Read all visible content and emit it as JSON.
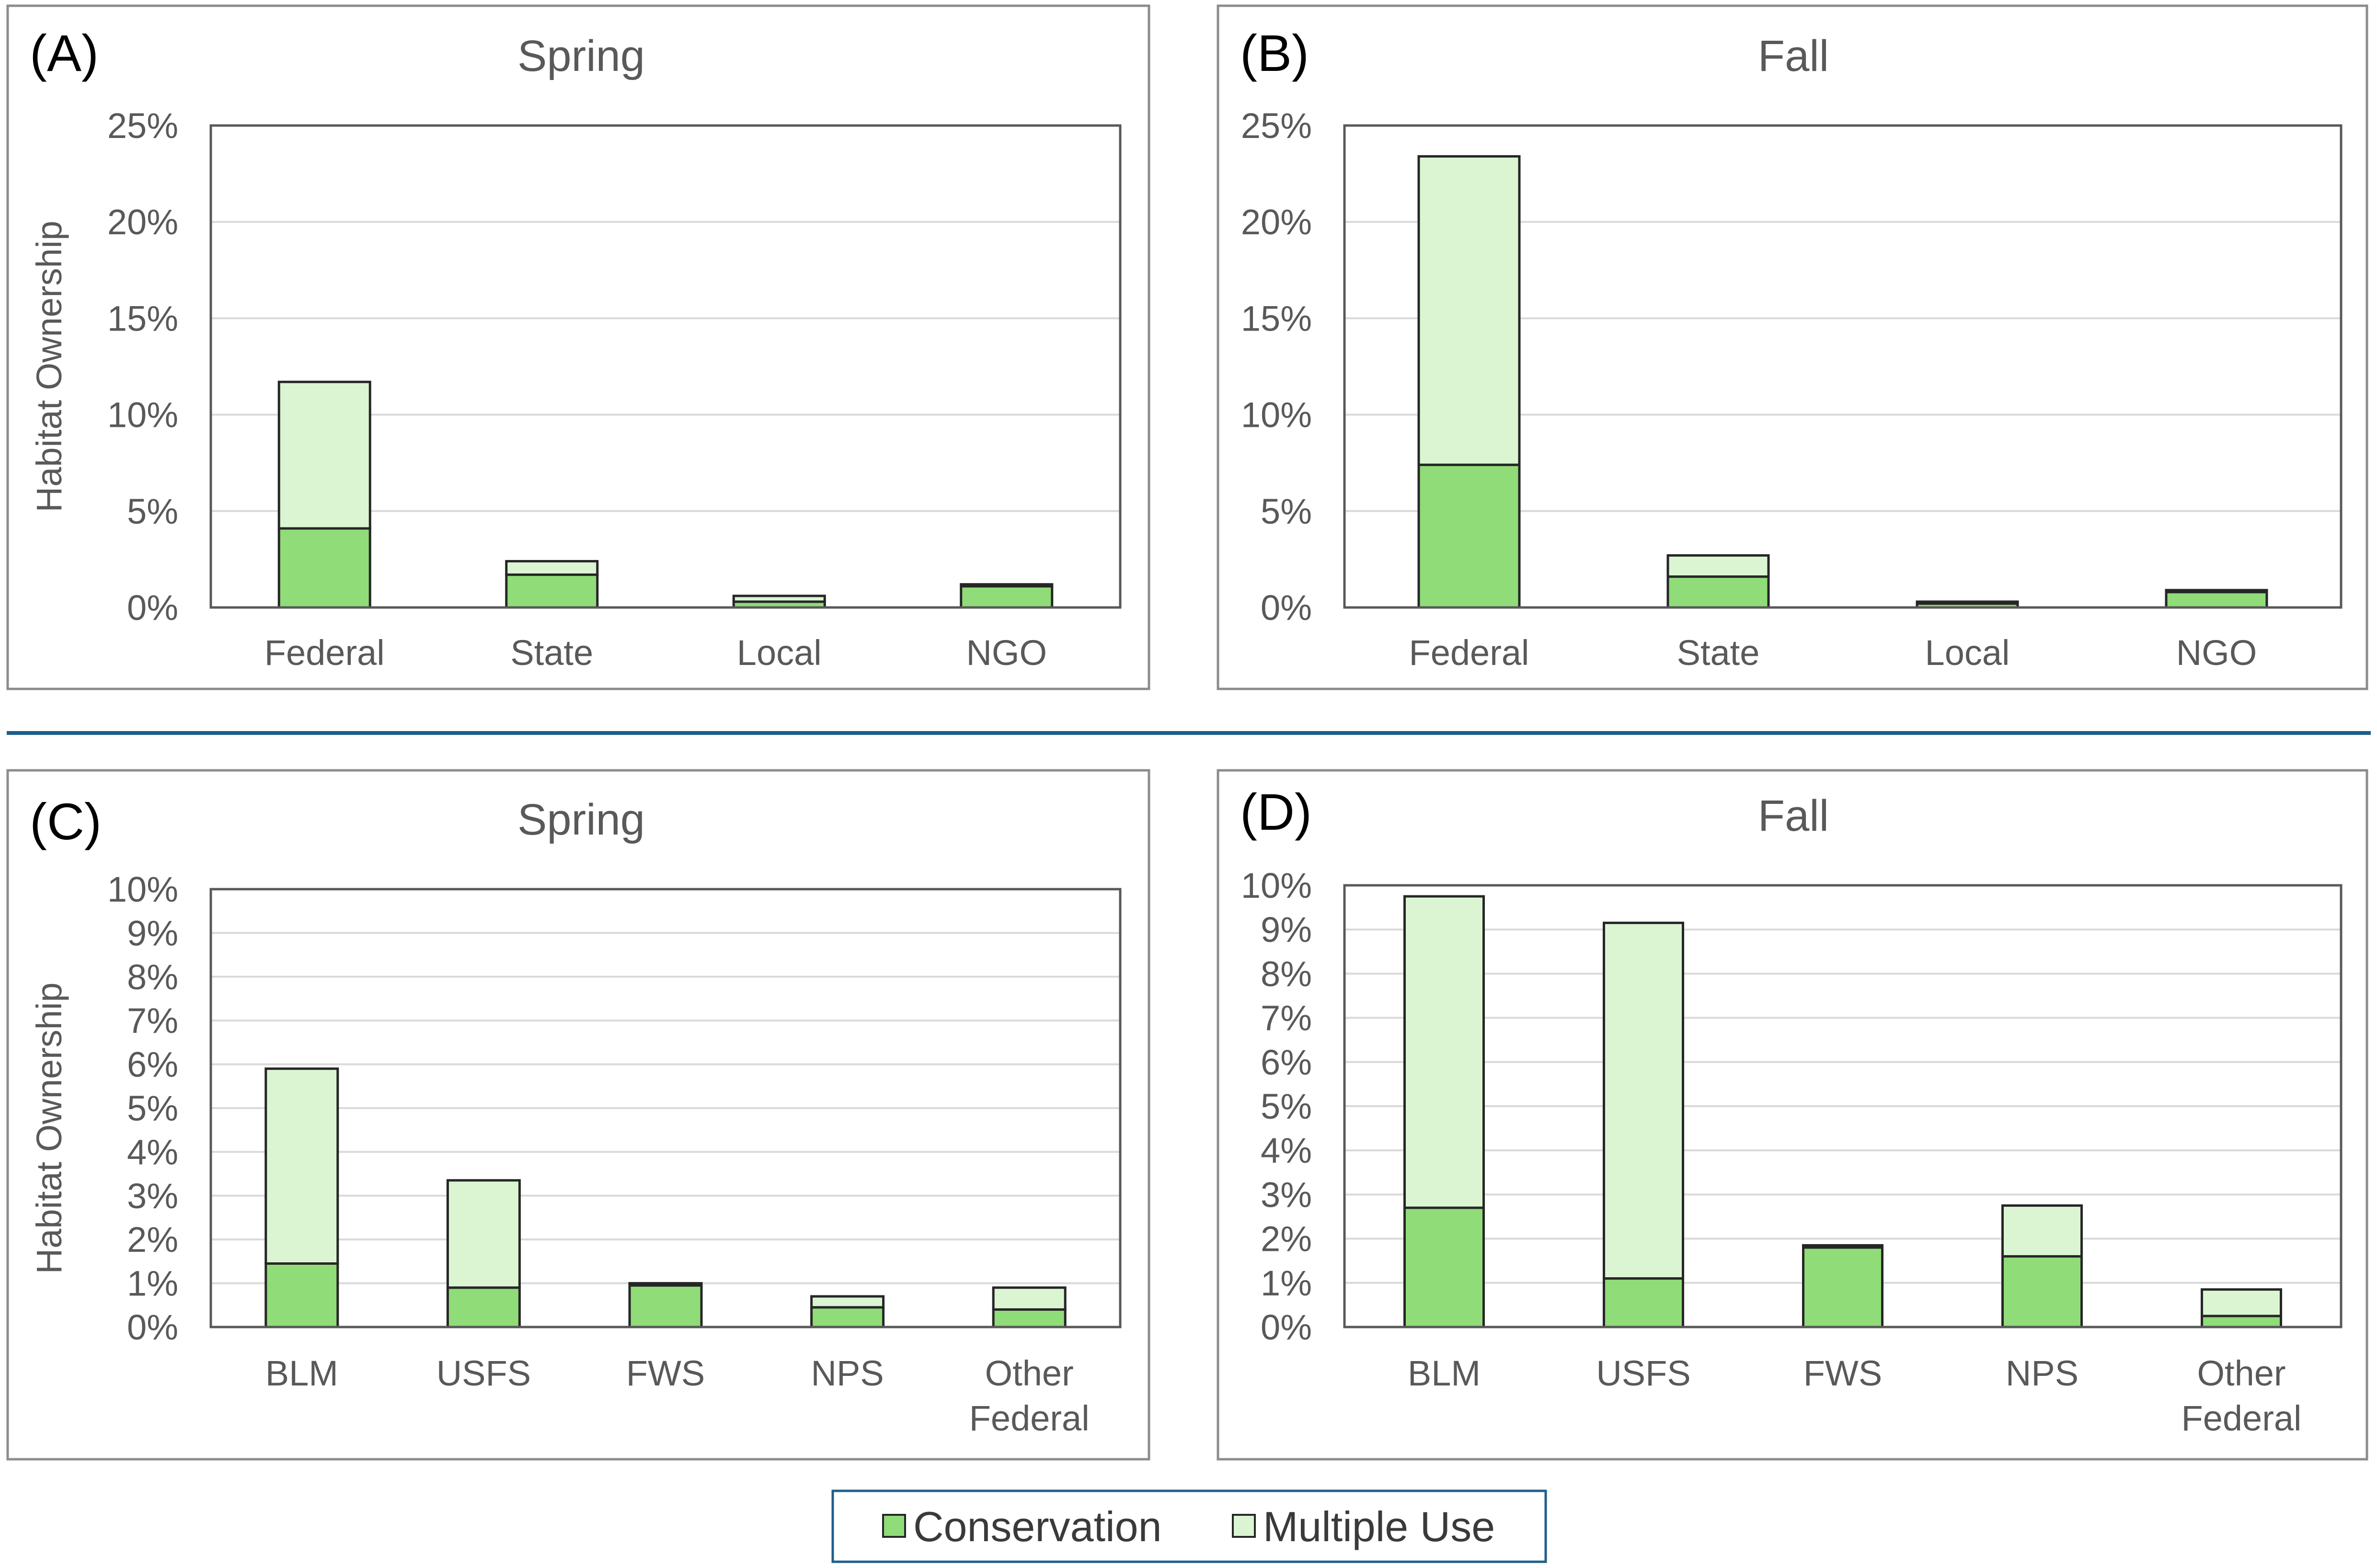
{
  "colors": {
    "conservation": "#8fdc78",
    "multiple_use": "#dbf5d3"
  },
  "legend": {
    "conservation_label": "Conservation",
    "multiple_use_label": "Multiple Use"
  },
  "chart_data": [
    {
      "panel": "(A)",
      "title": "Spring",
      "type": "bar",
      "stacked": true,
      "ylabel": "Habitat Ownership",
      "ylim": [
        0,
        25
      ],
      "yticks": [
        "0%",
        "5%",
        "10%",
        "15%",
        "20%",
        "25%"
      ],
      "categories": [
        "Federal",
        "State",
        "Local",
        "NGO"
      ],
      "series": [
        {
          "name": "Conservation",
          "values": [
            4.1,
            1.7,
            0.3,
            1.1
          ]
        },
        {
          "name": "Multiple Use",
          "values": [
            7.6,
            0.7,
            0.3,
            0.1
          ]
        }
      ]
    },
    {
      "panel": "(B)",
      "title": "Fall",
      "type": "bar",
      "stacked": true,
      "ylabel": "",
      "ylim": [
        0,
        25
      ],
      "yticks": [
        "0%",
        "5%",
        "10%",
        "15%",
        "20%",
        "25%"
      ],
      "categories": [
        "Federal",
        "State",
        "Local",
        "NGO"
      ],
      "series": [
        {
          "name": "Conservation",
          "values": [
            7.4,
            1.6,
            0.2,
            0.8
          ]
        },
        {
          "name": "Multiple Use",
          "values": [
            16.0,
            1.1,
            0.1,
            0.1
          ]
        }
      ]
    },
    {
      "panel": "(C)",
      "title": "Spring",
      "type": "bar",
      "stacked": true,
      "ylabel": "Habitat Ownership",
      "ylim": [
        0,
        10
      ],
      "yticks": [
        "0%",
        "1%",
        "2%",
        "3%",
        "4%",
        "5%",
        "6%",
        "7%",
        "8%",
        "9%",
        "10%"
      ],
      "categories": [
        "BLM",
        "USFS",
        "FWS",
        "NPS",
        "Other Federal"
      ],
      "series": [
        {
          "name": "Conservation",
          "values": [
            1.45,
            0.9,
            0.95,
            0.45,
            0.4
          ]
        },
        {
          "name": "Multiple Use",
          "values": [
            4.45,
            2.45,
            0.05,
            0.25,
            0.5
          ]
        }
      ]
    },
    {
      "panel": "(D)",
      "title": "Fall",
      "type": "bar",
      "stacked": true,
      "ylabel": "",
      "ylim": [
        0,
        10
      ],
      "yticks": [
        "0%",
        "1%",
        "2%",
        "3%",
        "4%",
        "5%",
        "6%",
        "7%",
        "8%",
        "9%",
        "10%"
      ],
      "categories": [
        "BLM",
        "USFS",
        "FWS",
        "NPS",
        "Other Federal"
      ],
      "series": [
        {
          "name": "Conservation",
          "values": [
            2.7,
            1.1,
            1.8,
            1.6,
            0.25
          ]
        },
        {
          "name": "Multiple Use",
          "values": [
            7.05,
            8.05,
            0.05,
            1.15,
            0.6
          ]
        }
      ]
    }
  ]
}
